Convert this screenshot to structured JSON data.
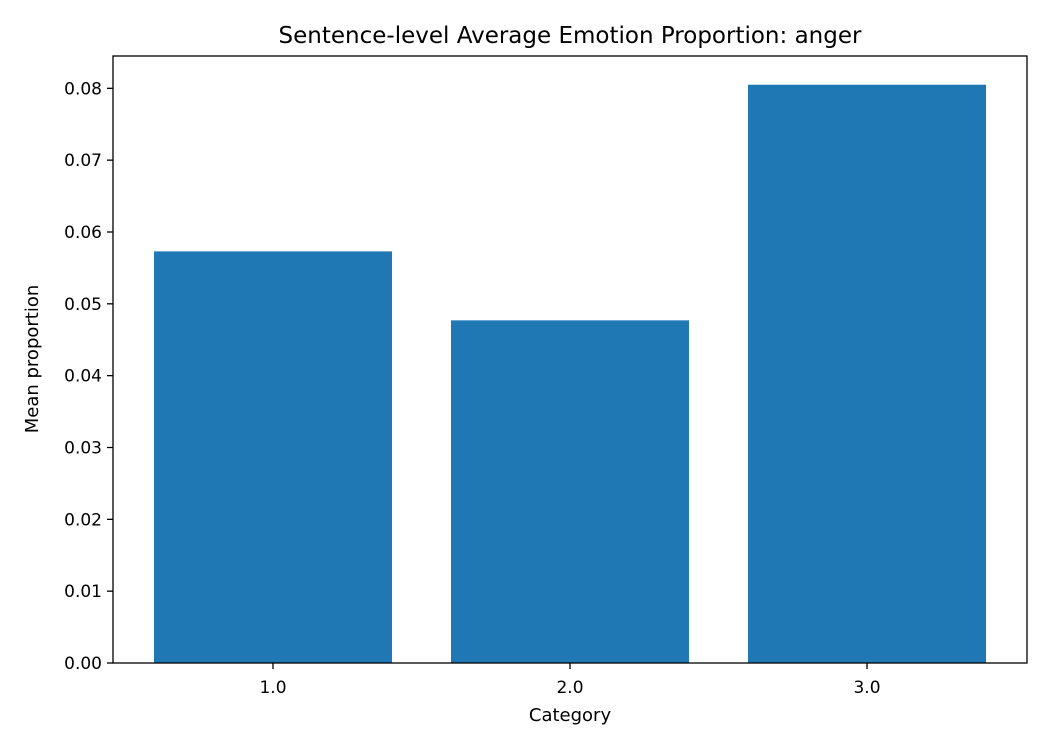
{
  "chart_data": {
    "type": "bar",
    "title": "Sentence-level Average Emotion Proportion: anger",
    "xlabel": "Category",
    "ylabel": "Mean proportion",
    "categories": [
      "1.0",
      "2.0",
      "3.0"
    ],
    "values": [
      0.0573,
      0.0477,
      0.0805
    ],
    "ylim": [
      0,
      0.0845
    ],
    "yticks": [
      "0.00",
      "0.01",
      "0.02",
      "0.03",
      "0.04",
      "0.05",
      "0.06",
      "0.07",
      "0.08"
    ],
    "bar_color": "#1f77b4",
    "grid": false,
    "legend": "none"
  }
}
